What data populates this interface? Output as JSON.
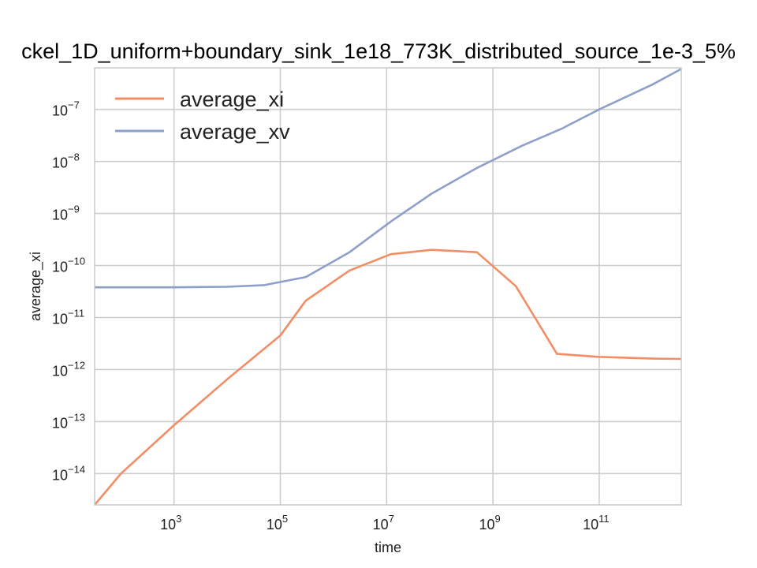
{
  "chart_data": {
    "type": "line",
    "title": "ckel_1D_uniform+boundary_sink_1e18_773K_distributed_source_1e-3_5%",
    "xlabel": "time",
    "ylabel": "average_xi",
    "xscale": "log",
    "yscale": "log",
    "xlim": [
      32,
      3500000000000.0
    ],
    "ylim": [
      2.5e-15,
      6.3e-07
    ],
    "xticks": [
      1000,
      100000,
      10000000,
      1000000000,
      100000000000
    ],
    "xtick_labels": [
      {
        "base": "10",
        "exp": "3"
      },
      {
        "base": "10",
        "exp": "5"
      },
      {
        "base": "10",
        "exp": "7"
      },
      {
        "base": "10",
        "exp": "9"
      },
      {
        "base": "10",
        "exp": "11"
      }
    ],
    "yticks": [
      1e-14,
      1e-13,
      1e-12,
      1e-11,
      1e-10,
      1e-09,
      1e-08,
      1e-07
    ],
    "ytick_labels": [
      {
        "base": "10",
        "exp": "−14"
      },
      {
        "base": "10",
        "exp": "−13"
      },
      {
        "base": "10",
        "exp": "−12"
      },
      {
        "base": "10",
        "exp": "−11"
      },
      {
        "base": "10",
        "exp": "−10"
      },
      {
        "base": "10",
        "exp": "−9"
      },
      {
        "base": "10",
        "exp": "−8"
      },
      {
        "base": "10",
        "exp": "−7"
      }
    ],
    "grid": true,
    "legend_position": "top-left",
    "series": [
      {
        "name": "average_xi",
        "color": "#F28E65",
        "x": [
          32,
          100,
          1000,
          10000,
          100000,
          300000,
          2000000,
          12000000,
          70000000,
          500000000,
          2700000000,
          16000000000,
          100000000000,
          1000000000000,
          3500000000000
        ],
        "y": [
          2.5e-15,
          1e-14,
          8.5e-14,
          6.5e-13,
          4.5e-12,
          2.1e-11,
          8e-11,
          1.65e-10,
          2e-10,
          1.8e-10,
          4e-11,
          2e-12,
          1.75e-12,
          1.62e-12,
          1.6e-12
        ]
      },
      {
        "name": "average_xv",
        "color": "#8EA0CA",
        "x": [
          32,
          1000,
          10000,
          50000,
          300000,
          2000000,
          12000000,
          70000000,
          500000000,
          3500000000,
          20000000000,
          100000000000,
          1000000000000,
          3500000000000
        ],
        "y": [
          3.8e-11,
          3.8e-11,
          3.9e-11,
          4.2e-11,
          6e-11,
          1.8e-10,
          7e-10,
          2.4e-09,
          7.5e-09,
          2e-08,
          4.3e-08,
          1e-07,
          3e-07,
          6e-07
        ]
      }
    ]
  }
}
